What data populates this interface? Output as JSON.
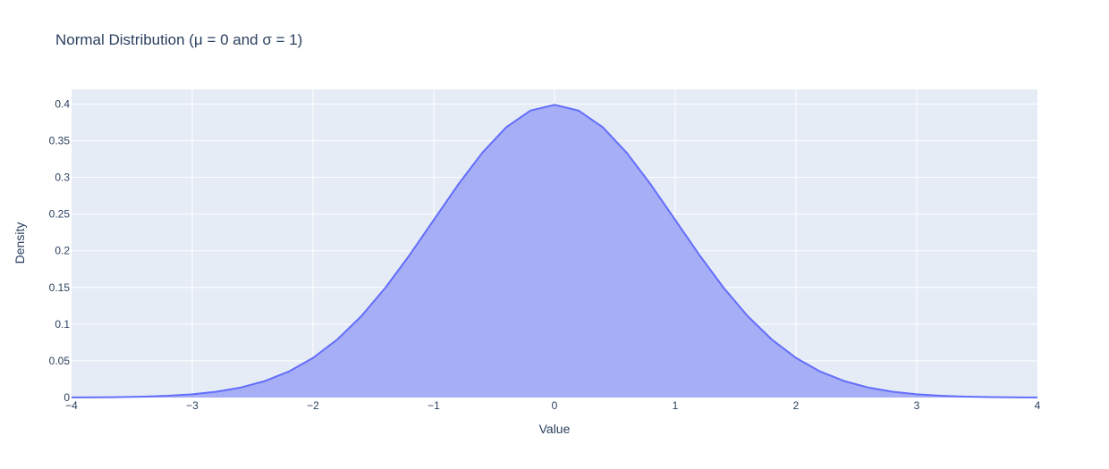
{
  "chart_data": {
    "type": "area",
    "title": "Normal Distribution (μ = 0 and σ = 1)",
    "xlabel": "Value",
    "ylabel": "Density",
    "xlim": [
      -4,
      4
    ],
    "ylim": [
      0,
      0.42
    ],
    "grid": true,
    "x_ticks": [
      {
        "value": -4,
        "label": "−4"
      },
      {
        "value": -3,
        "label": "−3"
      },
      {
        "value": -2,
        "label": "−2"
      },
      {
        "value": -1,
        "label": "−1"
      },
      {
        "value": 0,
        "label": "0"
      },
      {
        "value": 1,
        "label": "1"
      },
      {
        "value": 2,
        "label": "2"
      },
      {
        "value": 3,
        "label": "3"
      },
      {
        "value": 4,
        "label": "4"
      }
    ],
    "y_ticks": [
      {
        "value": 0,
        "label": "0"
      },
      {
        "value": 0.05,
        "label": "0.05"
      },
      {
        "value": 0.1,
        "label": "0.1"
      },
      {
        "value": 0.15,
        "label": "0.15"
      },
      {
        "value": 0.2,
        "label": "0.2"
      },
      {
        "value": 0.25,
        "label": "0.25"
      },
      {
        "value": 0.3,
        "label": "0.3"
      },
      {
        "value": 0.35,
        "label": "0.35"
      },
      {
        "value": 0.4,
        "label": "0.4"
      }
    ],
    "series": [
      {
        "x": [
          -4.0,
          -3.8,
          -3.6,
          -3.4,
          -3.2,
          -3.0,
          -2.8,
          -2.6,
          -2.4,
          -2.2,
          -2.0,
          -1.8,
          -1.6,
          -1.4,
          -1.2,
          -1.0,
          -0.8,
          -0.6,
          -0.4,
          -0.2,
          0.0,
          0.2,
          0.4,
          0.6,
          0.8,
          1.0,
          1.2,
          1.4,
          1.6,
          1.8,
          2.0,
          2.2,
          2.4,
          2.6,
          2.8,
          3.0,
          3.2,
          3.4,
          3.6,
          3.8,
          4.0
        ],
        "values": [
          0.0001,
          0.0003,
          0.0006,
          0.0012,
          0.0024,
          0.0044,
          0.0079,
          0.0136,
          0.0224,
          0.0355,
          0.054,
          0.079,
          0.1109,
          0.1497,
          0.1942,
          0.242,
          0.2897,
          0.3332,
          0.3683,
          0.391,
          0.3989,
          0.391,
          0.3683,
          0.3332,
          0.2897,
          0.242,
          0.1942,
          0.1497,
          0.1109,
          0.079,
          0.054,
          0.0355,
          0.0224,
          0.0136,
          0.0079,
          0.0044,
          0.0024,
          0.0012,
          0.0006,
          0.0003,
          0.0001
        ]
      }
    ],
    "colors": {
      "plot_background": "#e5ecf6",
      "grid": "#ffffff",
      "line": "#636efa",
      "fill": "#a2abf6",
      "text": "#2a3f5f"
    }
  }
}
